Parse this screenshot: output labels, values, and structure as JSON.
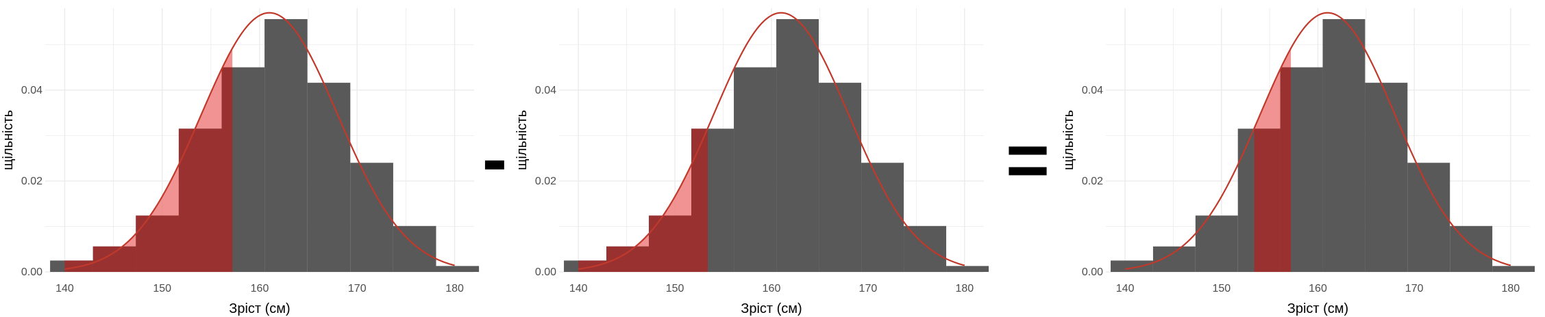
{
  "colors": {
    "bar": "#545454",
    "curve": "#c0392b",
    "shade_light": "#f08080",
    "shade_dark": "#a52a2a",
    "grid": "#ebebeb"
  },
  "operators": [
    "-",
    "="
  ],
  "chart_data": [
    {
      "type": "bar",
      "subtype": "histogram_with_normal_curve",
      "xlabel": "Зріст (см)",
      "ylabel": "щільність",
      "xlim": [
        138,
        182
      ],
      "ylim": [
        0,
        0.058
      ],
      "x_ticks": [
        140,
        150,
        160,
        170,
        180
      ],
      "y_ticks": [
        0.0,
        0.02,
        0.04
      ],
      "bin_edges": [
        138.5,
        142.9,
        147.3,
        151.7,
        156.1,
        160.5,
        164.9,
        169.3,
        173.7,
        178.1,
        182.5
      ],
      "values": [
        0.0025,
        0.0056,
        0.0124,
        0.0315,
        0.045,
        0.0556,
        0.0416,
        0.024,
        0.0101,
        0.0013
      ],
      "normal_curve": {
        "mean": 161,
        "sd": 7,
        "x_range": [
          140,
          180
        ]
      },
      "shaded_region": [
        null,
        157.2
      ],
      "grid": true,
      "legend": "none"
    },
    {
      "type": "bar",
      "subtype": "histogram_with_normal_curve",
      "xlabel": "Зріст (см)",
      "ylabel": "щільність",
      "xlim": [
        138,
        182
      ],
      "ylim": [
        0,
        0.058
      ],
      "x_ticks": [
        140,
        150,
        160,
        170,
        180
      ],
      "y_ticks": [
        0.0,
        0.02,
        0.04
      ],
      "bin_edges": [
        138.5,
        142.9,
        147.3,
        151.7,
        156.1,
        160.5,
        164.9,
        169.3,
        173.7,
        178.1,
        182.5
      ],
      "values": [
        0.0025,
        0.0056,
        0.0124,
        0.0315,
        0.045,
        0.0556,
        0.0416,
        0.024,
        0.0101,
        0.0013
      ],
      "normal_curve": {
        "mean": 161,
        "sd": 7,
        "x_range": [
          140,
          180
        ]
      },
      "shaded_region": [
        null,
        153.4
      ],
      "grid": true,
      "legend": "none"
    },
    {
      "type": "bar",
      "subtype": "histogram_with_normal_curve",
      "xlabel": "Зріст (см)",
      "ylabel": "щільність",
      "xlim": [
        138,
        182
      ],
      "ylim": [
        0,
        0.058
      ],
      "x_ticks": [
        140,
        150,
        160,
        170,
        180
      ],
      "y_ticks": [
        0.0,
        0.02,
        0.04
      ],
      "bin_edges": [
        138.5,
        142.9,
        147.3,
        151.7,
        156.1,
        160.5,
        164.9,
        169.3,
        173.7,
        178.1,
        182.5
      ],
      "values": [
        0.0025,
        0.0056,
        0.0124,
        0.0315,
        0.045,
        0.0556,
        0.0416,
        0.024,
        0.0101,
        0.0013
      ],
      "normal_curve": {
        "mean": 161,
        "sd": 7,
        "x_range": [
          140,
          180
        ]
      },
      "shaded_region": [
        153.4,
        157.2
      ],
      "grid": true,
      "legend": "none"
    }
  ]
}
